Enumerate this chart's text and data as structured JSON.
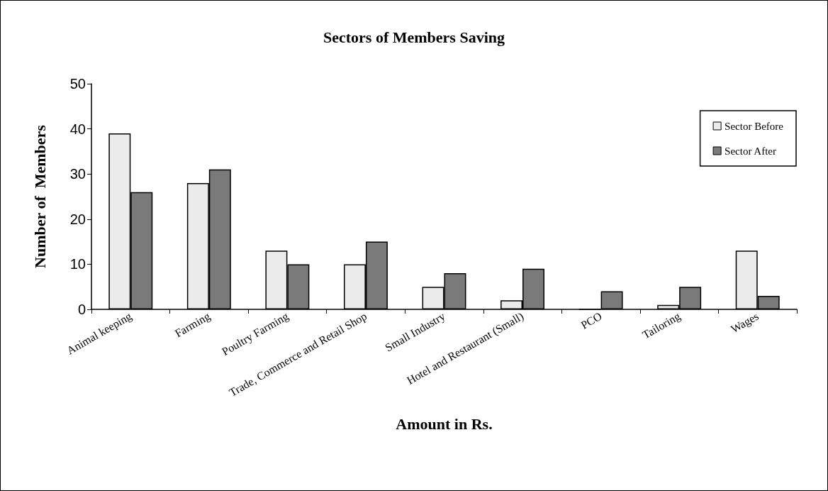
{
  "chart_data": {
    "type": "bar",
    "title": "Sectors of Members Saving",
    "xlabel": "Amount in Rs.",
    "ylabel": "Number of  Members",
    "categories": [
      "Animal keeping",
      "Farming",
      "Poultry Farming",
      "Trade, Commerce and Retail Shop",
      "Small Industry",
      "Hotel and Restaurant (Small)",
      "PCO",
      "Tailoring",
      "Wages"
    ],
    "series": [
      {
        "name": "Sector Before",
        "color": "#ebebeb",
        "values": [
          39,
          28,
          13,
          10,
          5,
          2,
          0,
          1,
          13
        ]
      },
      {
        "name": "Sector After",
        "color": "#7a7a7a",
        "values": [
          26,
          31,
          10,
          15,
          8,
          9,
          4,
          5,
          3
        ]
      }
    ],
    "ylim": [
      0,
      50
    ],
    "yticks": [
      0,
      10,
      20,
      30,
      40,
      50
    ],
    "grid": false,
    "legend": "top right"
  }
}
